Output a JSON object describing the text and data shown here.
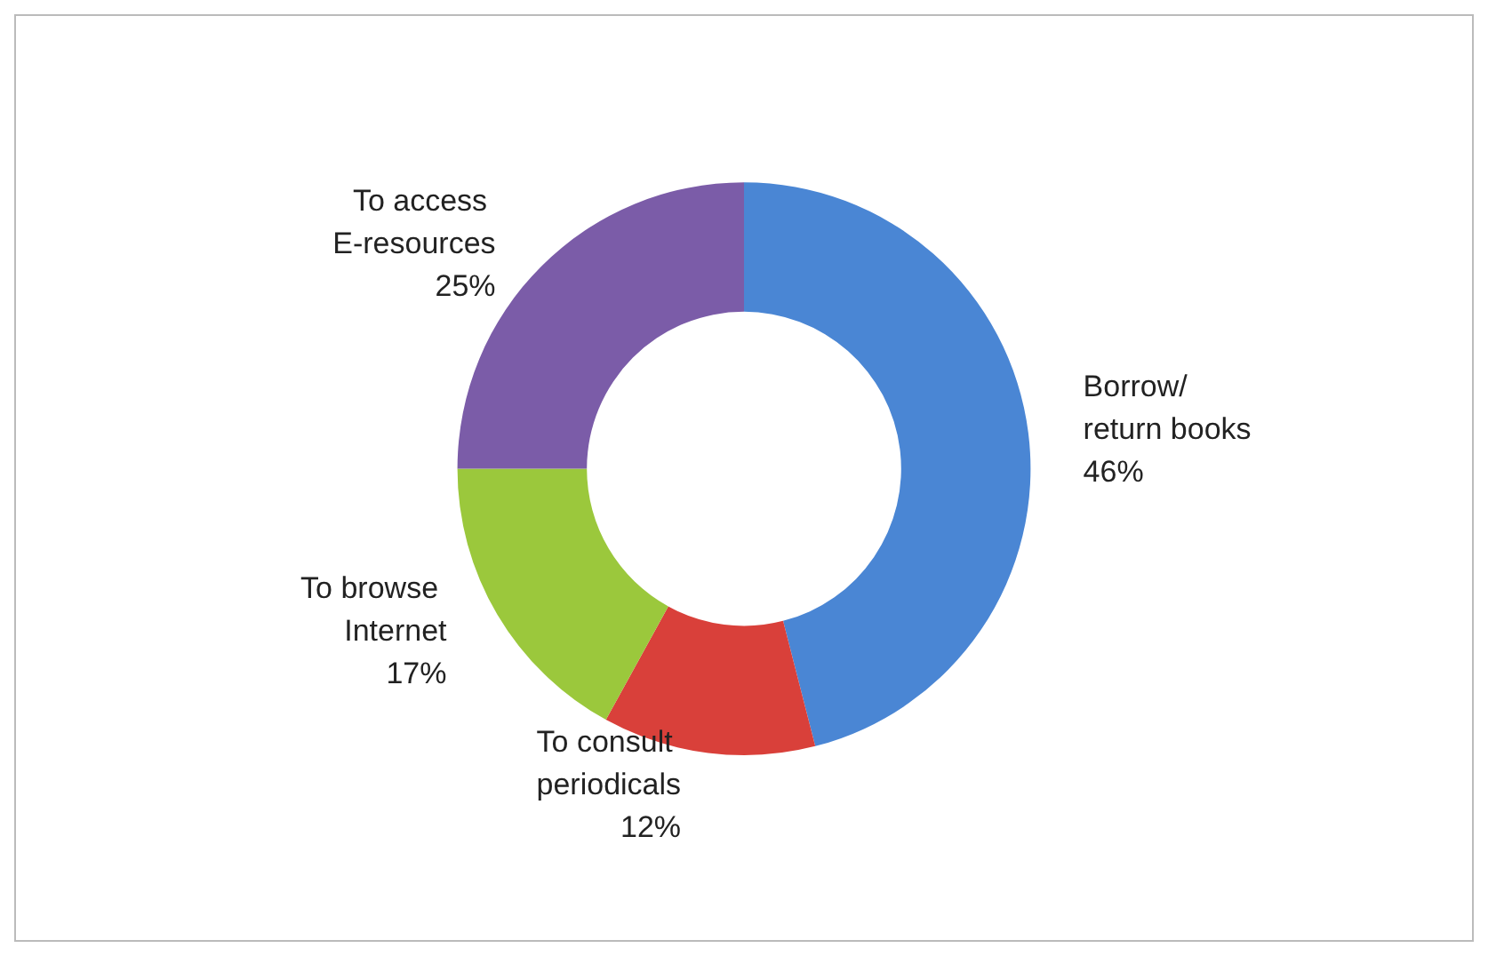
{
  "chart_data": {
    "type": "donut",
    "categories": [
      "Borrow/return books",
      "To consult periodicals",
      "To browse Internet",
      "To access E-resources"
    ],
    "values": [
      46,
      12,
      17,
      25
    ],
    "value_labels": [
      "46%",
      "12%",
      "17%",
      "25%"
    ],
    "colors": [
      "#4a86d4",
      "#d9403a",
      "#9bc83c",
      "#7b5ca8"
    ],
    "legend": false
  }
}
